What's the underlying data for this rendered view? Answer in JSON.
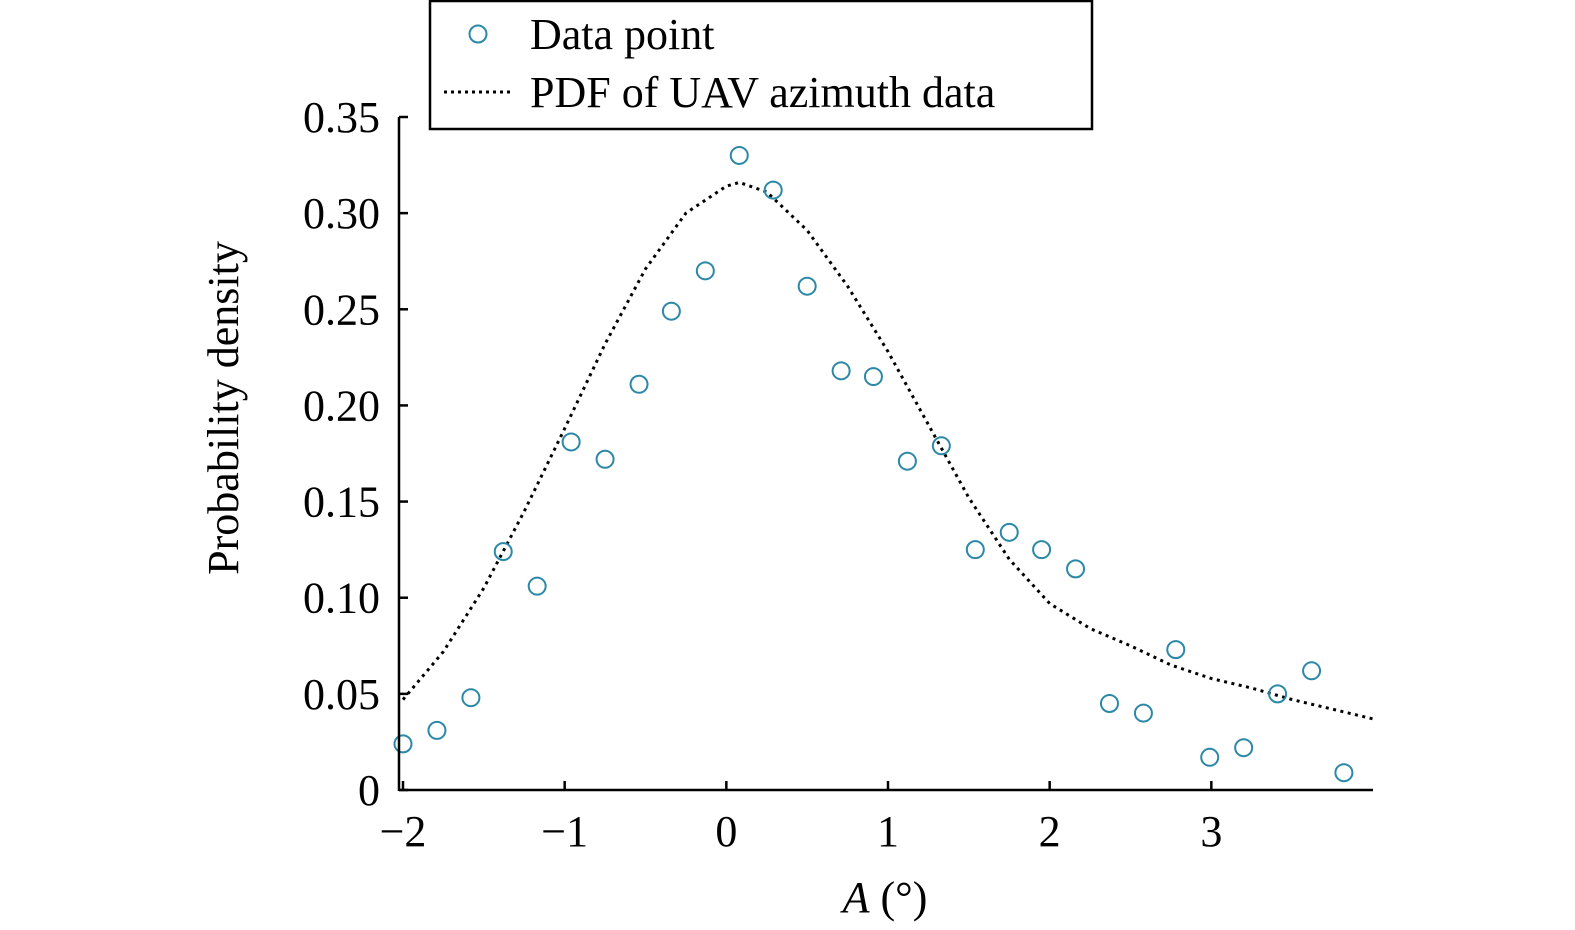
{
  "chart_data": {
    "type": "scatter",
    "xlabel_var": "A",
    "xlabel_unit": " (°)",
    "ylabel": "Probability density",
    "xlim": [
      -2,
      4
    ],
    "ylim": [
      0,
      0.35
    ],
    "x_ticks": [
      -2,
      -1,
      0,
      1,
      2,
      3
    ],
    "x_tick_labels": [
      "−2",
      "−1",
      "0",
      "1",
      "2",
      "3"
    ],
    "y_ticks": [
      0,
      0.05,
      0.1,
      0.15,
      0.2,
      0.25,
      0.3,
      0.35
    ],
    "y_tick_labels": [
      "0",
      "0.05",
      "0.10",
      "0.15",
      "0.20",
      "0.25",
      "0.30",
      "0.35"
    ],
    "grid": false,
    "legend_position": "top",
    "series": [
      {
        "name": "Data point",
        "kind": "scatter",
        "marker": "open-circle",
        "color": "#2b88a6",
        "x": [
          -2.0,
          -1.79,
          -1.58,
          -1.38,
          -1.17,
          -0.96,
          -0.75,
          -0.54,
          -0.34,
          -0.13,
          0.08,
          0.29,
          0.5,
          0.71,
          0.91,
          1.12,
          1.33,
          1.54,
          1.75,
          1.95,
          2.16,
          2.37,
          2.58,
          2.78,
          2.99,
          3.2,
          3.41,
          3.62,
          3.82
        ],
        "y": [
          0.024,
          0.031,
          0.048,
          0.124,
          0.106,
          0.181,
          0.172,
          0.211,
          0.249,
          0.27,
          0.33,
          0.312,
          0.262,
          0.218,
          0.215,
          0.171,
          0.179,
          0.125,
          0.134,
          0.125,
          0.115,
          0.045,
          0.04,
          0.073,
          0.017,
          0.022,
          0.05,
          0.062,
          0.009
        ]
      },
      {
        "name": "PDF of UAV azimuth data",
        "kind": "line",
        "style": "dotted",
        "color": "#000000",
        "x": [
          -2,
          -1.75,
          -1.5,
          -1.25,
          -1,
          -0.75,
          -0.5,
          -0.25,
          0,
          0.08,
          0.25,
          0.5,
          0.75,
          1,
          1.25,
          1.5,
          1.75,
          2,
          2.25,
          2.5,
          2.75,
          3,
          3.25,
          3.5,
          3.75,
          4
        ],
        "y": [
          0.047,
          0.072,
          0.105,
          0.145,
          0.188,
          0.232,
          0.271,
          0.3,
          0.314,
          0.316,
          0.311,
          0.291,
          0.262,
          0.228,
          0.19,
          0.152,
          0.12,
          0.097,
          0.084,
          0.075,
          0.065,
          0.058,
          0.053,
          0.047,
          0.042,
          0.037
        ]
      }
    ]
  }
}
